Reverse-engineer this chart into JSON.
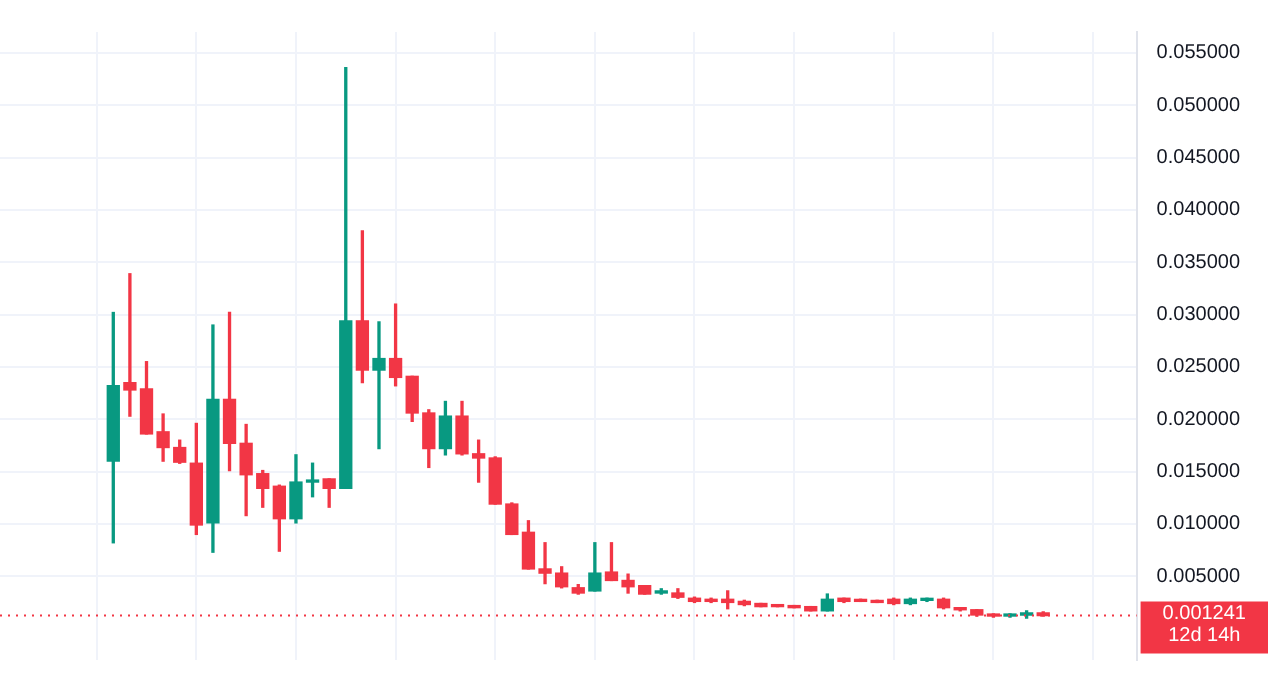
{
  "chart_data": {
    "type": "candlestick",
    "categories": [
      null,
      null,
      null,
      null,
      null,
      null,
      null,
      null,
      null,
      null,
      null,
      null,
      null,
      null,
      null,
      null,
      null,
      null,
      null,
      null,
      null,
      null,
      null,
      null,
      null,
      null,
      null,
      null,
      null,
      null,
      null,
      null,
      null,
      null,
      null,
      null,
      null,
      null,
      null,
      null,
      null,
      null,
      null,
      null,
      null,
      null,
      null,
      null,
      null,
      null,
      null,
      null,
      null,
      null,
      null,
      null,
      null
    ],
    "ohlc": [
      [
        0.016,
        0.0302,
        0.0082,
        0.0232
      ],
      [
        0.0235,
        0.0339,
        0.0203,
        0.0228
      ],
      [
        0.0229,
        0.0255,
        0.0186,
        0.0186
      ],
      [
        0.0188,
        0.0205,
        0.016,
        0.0173
      ],
      [
        0.0173,
        0.018,
        0.0158,
        0.0159
      ],
      [
        0.0158,
        0.0196,
        0.009,
        0.0099
      ],
      [
        0.0101,
        0.029,
        0.0073,
        0.0219
      ],
      [
        0.0219,
        0.0302,
        0.0151,
        0.0177
      ],
      [
        0.0177,
        0.0195,
        0.0108,
        0.0147
      ],
      [
        0.0148,
        0.0151,
        0.0116,
        0.0134
      ],
      [
        0.0136,
        0.0137,
        0.0074,
        0.0105
      ],
      [
        0.0105,
        0.0166,
        0.0101,
        0.014
      ],
      [
        0.014,
        0.0158,
        0.0126,
        0.0141
      ],
      [
        0.0143,
        0.0143,
        0.0116,
        0.0134
      ],
      [
        0.0134,
        0.0536,
        0.0134,
        0.0294
      ],
      [
        0.0294,
        0.038,
        0.0235,
        0.0247
      ],
      [
        0.0247,
        0.0293,
        0.0172,
        0.0258
      ],
      [
        0.0258,
        0.031,
        0.0232,
        0.024
      ],
      [
        0.0241,
        0.0241,
        0.0198,
        0.0206
      ],
      [
        0.0206,
        0.0209,
        0.0154,
        0.0172
      ],
      [
        0.0172,
        0.0217,
        0.0166,
        0.0203
      ],
      [
        0.0203,
        0.0217,
        0.0166,
        0.0167
      ],
      [
        0.0167,
        0.018,
        0.014,
        0.0163
      ],
      [
        0.0163,
        0.0164,
        0.0119,
        0.0119
      ],
      [
        0.0119,
        0.012,
        0.009,
        0.009
      ],
      [
        0.0092,
        0.0103,
        0.0057,
        0.0057
      ],
      [
        0.0057,
        0.0082,
        0.0043,
        0.0053
      ],
      [
        0.0053,
        0.0059,
        0.0039,
        0.004
      ],
      [
        0.0039,
        0.0042,
        0.0033,
        0.0034
      ],
      [
        0.0036,
        0.0082,
        0.0036,
        0.0053
      ],
      [
        0.0054,
        0.0082,
        0.0046,
        0.0046
      ],
      [
        0.0046,
        0.0052,
        0.0034,
        0.004
      ],
      [
        0.0041,
        0.0041,
        0.0033,
        0.0033
      ],
      [
        0.0034,
        0.0038,
        0.0033,
        0.0036
      ],
      [
        0.0034,
        0.0038,
        0.0029,
        0.003
      ],
      [
        0.0029,
        0.003,
        0.0025,
        0.0026
      ],
      [
        0.0028,
        0.0029,
        0.0025,
        0.0026
      ],
      [
        0.0028,
        0.0036,
        0.0019,
        0.0025
      ],
      [
        0.0026,
        0.0027,
        0.0022,
        0.0023
      ],
      [
        0.0024,
        0.0024,
        0.0021,
        0.0021
      ],
      [
        0.0022,
        0.0022,
        0.0021,
        0.0021
      ],
      [
        0.0022,
        0.0022,
        0.002,
        0.002
      ],
      [
        0.0021,
        0.0021,
        0.0017,
        0.0017
      ],
      [
        0.0017,
        0.0033,
        0.0017,
        0.0028
      ],
      [
        0.0029,
        0.0029,
        0.0025,
        0.0026
      ],
      [
        0.0027,
        0.0028,
        0.0026,
        0.0026
      ],
      [
        0.0026,
        0.0027,
        0.0025,
        0.0025
      ],
      [
        0.0028,
        0.0029,
        0.0023,
        0.0024
      ],
      [
        0.0024,
        0.0029,
        0.0023,
        0.0028
      ],
      [
        0.0027,
        0.0029,
        0.0026,
        0.0028
      ],
      [
        0.0028,
        0.0029,
        0.0019,
        0.002
      ],
      [
        0.002,
        0.002,
        0.0017,
        0.0018
      ],
      [
        0.0018,
        0.0018,
        0.0012,
        0.0013
      ],
      [
        0.0013,
        0.0014,
        0.0011,
        0.0012
      ],
      [
        0.0012,
        0.0014,
        0.0011,
        0.0013
      ],
      [
        0.0013,
        0.0017,
        0.001,
        0.0015
      ],
      [
        0.0015,
        0.0016,
        0.0012,
        0.001241
      ]
    ],
    "colors": [
      "#089981",
      "#f23645",
      "#f23645",
      "#f23645",
      "#f23645",
      "#f23645",
      "#089981",
      "#f23645",
      "#f23645",
      "#f23645",
      "#f23645",
      "#089981",
      "#089981",
      "#f23645",
      "#089981",
      "#f23645",
      "#089981",
      "#f23645",
      "#f23645",
      "#f23645",
      "#089981",
      "#f23645",
      "#f23645",
      "#f23645",
      "#f23645",
      "#f23645",
      "#f23645",
      "#f23645",
      "#f23645",
      "#089981",
      "#f23645",
      "#f23645",
      "#f23645",
      "#089981",
      "#f23645",
      "#f23645",
      "#f23645",
      "#f23645",
      "#f23645",
      "#f23645",
      "#f23645",
      "#f23645",
      "#f23645",
      "#089981",
      "#f23645",
      "#f23645",
      "#f23645",
      "#f23645",
      "#089981",
      "#089981",
      "#f23645",
      "#f23645",
      "#f23645",
      "#f23645",
      "#089981",
      "#089981",
      "#f23645"
    ],
    "ylim": [
      -0.003,
      0.057
    ],
    "yticks": [
      {
        "value": 0.005,
        "label": "0.005000"
      },
      {
        "value": 0.01,
        "label": "0.010000"
      },
      {
        "value": 0.015,
        "label": "0.015000"
      },
      {
        "value": 0.02,
        "label": "0.020000"
      },
      {
        "value": 0.025,
        "label": "0.025000"
      },
      {
        "value": 0.03,
        "label": "0.030000"
      },
      {
        "value": 0.035,
        "label": "0.035000"
      },
      {
        "value": 0.04,
        "label": "0.040000"
      },
      {
        "value": 0.045,
        "label": "0.045000"
      },
      {
        "value": 0.05,
        "label": "0.050000"
      },
      {
        "value": 0.055,
        "label": "0.055000"
      }
    ],
    "tick_labels": "y",
    "grid": true,
    "ref_lines": [
      {
        "axis": "y",
        "value": 0.001241,
        "label": "0.001241",
        "color": "#f23645",
        "line_style": "dotted"
      }
    ],
    "annotations": [
      "12d 14h"
    ]
  }
}
